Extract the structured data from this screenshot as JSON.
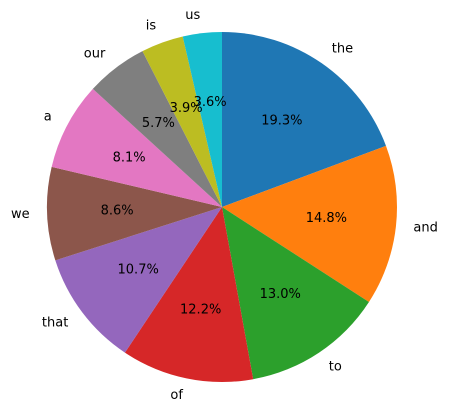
{
  "chart_data": {
    "type": "pie",
    "start_angle_deg": 90,
    "direction": "clockwise",
    "slices": [
      {
        "label": "the",
        "pct_label": "19.3%",
        "value": 19.3,
        "color": "#1f77b4"
      },
      {
        "label": "and",
        "pct_label": "14.8%",
        "value": 14.8,
        "color": "#ff7f0e"
      },
      {
        "label": "to",
        "pct_label": "13.0%",
        "value": 13.0,
        "color": "#2ca02c"
      },
      {
        "label": "of",
        "pct_label": "12.2%",
        "value": 12.2,
        "color": "#d62728"
      },
      {
        "label": "that",
        "pct_label": "10.7%",
        "value": 10.7,
        "color": "#9467bd"
      },
      {
        "label": "we",
        "pct_label": "8.6%",
        "value": 8.6,
        "color": "#8c564b"
      },
      {
        "label": "a",
        "pct_label": "8.1%",
        "value": 8.1,
        "color": "#e377c2"
      },
      {
        "label": "our",
        "pct_label": "5.7%",
        "value": 5.7,
        "color": "#7f7f7f"
      },
      {
        "label": "is",
        "pct_label": "3.9%",
        "value": 3.9,
        "color": "#bcbd22"
      },
      {
        "label": "us",
        "pct_label": "3.6%",
        "value": 3.6,
        "color": "#17becf"
      }
    ]
  }
}
